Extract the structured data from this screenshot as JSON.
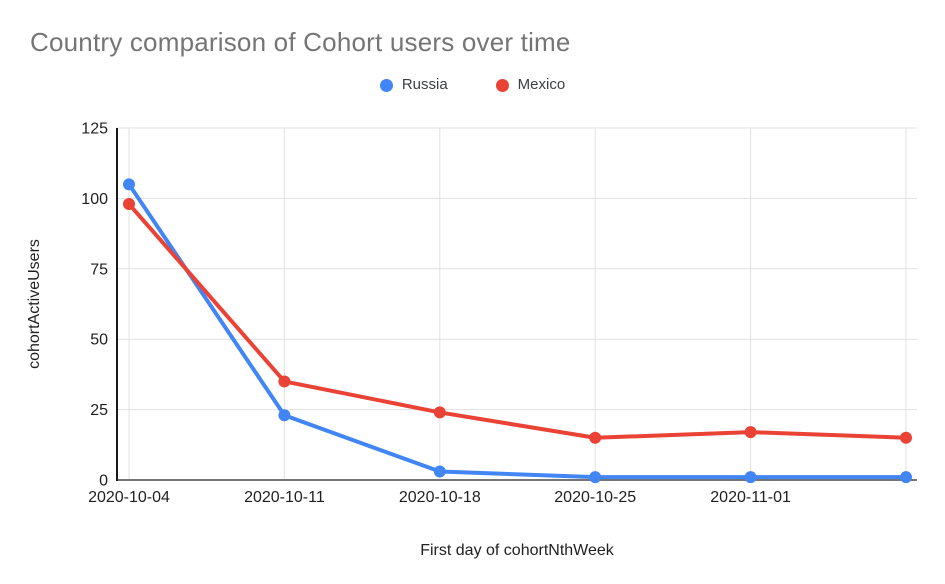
{
  "chart_data": {
    "type": "line",
    "title": "Country comparison of Cohort users over time",
    "xlabel": "First day of cohortNthWeek",
    "ylabel": "cohortActiveUsers",
    "categories": [
      "2020-10-04",
      "2020-10-11",
      "2020-10-18",
      "2020-10-25",
      "2020-11-01",
      ""
    ],
    "series": [
      {
        "name": "Russia",
        "color": "#4285F4",
        "values": [
          105,
          23,
          3,
          1,
          1,
          1
        ]
      },
      {
        "name": "Mexico",
        "color": "#EA4335",
        "values": [
          98,
          35,
          24,
          15,
          17,
          15
        ]
      }
    ],
    "y_ticks": [
      0,
      25,
      50,
      75,
      100,
      125
    ],
    "ylim": [
      0,
      125
    ],
    "grid": true,
    "legend_position": "top"
  },
  "colors": {
    "title": "#757575",
    "legend_text": "#3c4043",
    "tick_text": "#1f1f1f",
    "grid": "#e0e0e0",
    "y_axis_line": "#1a1a1a",
    "x_axis_line": "#757575",
    "background": "#ffffff"
  }
}
